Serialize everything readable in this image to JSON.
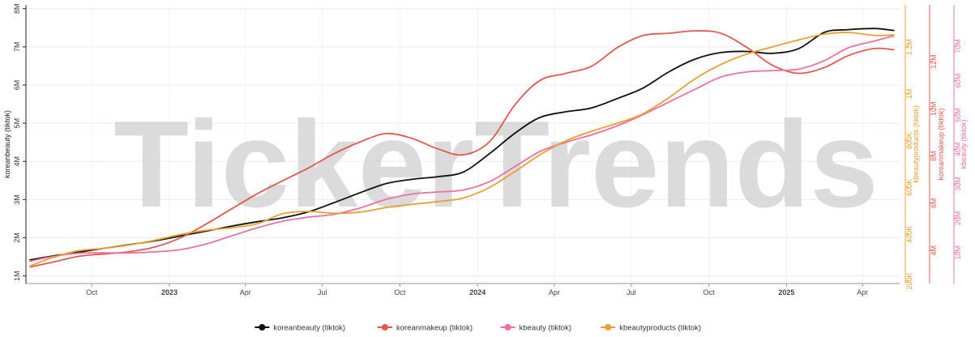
{
  "watermark": "TickerTrends",
  "chart_data": {
    "type": "line",
    "grid": true,
    "legend_position": "bottom-center",
    "x_ticks": [
      {
        "date": "2022-10-01",
        "label": "Oct",
        "bold": false
      },
      {
        "date": "2023-01-01",
        "label": "2023",
        "bold": true
      },
      {
        "date": "2023-04-01",
        "label": "Apr",
        "bold": false
      },
      {
        "date": "2023-07-01",
        "label": "Jul",
        "bold": false
      },
      {
        "date": "2023-10-01",
        "label": "Oct",
        "bold": false
      },
      {
        "date": "2024-01-01",
        "label": "2024",
        "bold": true
      },
      {
        "date": "2024-04-01",
        "label": "Apr",
        "bold": false
      },
      {
        "date": "2024-07-01",
        "label": "Jul",
        "bold": false
      },
      {
        "date": "2024-10-01",
        "label": "Oct",
        "bold": false
      },
      {
        "date": "2025-01-01",
        "label": "2025",
        "bold": true
      },
      {
        "date": "2025-04-01",
        "label": "Apr",
        "bold": false
      }
    ],
    "x_range": [
      "2022-07-15",
      "2025-05-15"
    ],
    "axes": [
      {
        "id": "y1",
        "label": "koreanbeauty (tiktok)",
        "color": "#222222",
        "range": [
          0.8,
          8.1
        ],
        "ticks": [
          1,
          2,
          3,
          4,
          5,
          6,
          7,
          8
        ],
        "tick_labels": [
          "1M",
          "2M",
          "3M",
          "4M",
          "5M",
          "6M",
          "7M",
          "8M"
        ]
      },
      {
        "id": "y2",
        "label": "kbeautyproducts (tiktok)",
        "color": "#e8a030",
        "range": [
          190,
          1380
        ],
        "ticks": [
          200,
          400,
          600,
          800,
          1000,
          1200
        ],
        "tick_labels": [
          "200K",
          "400K",
          "600K",
          "800K",
          "1M",
          "1.2M"
        ]
      },
      {
        "id": "y3",
        "label": "koreanmakeup (tiktok)",
        "color": "#e05a4e",
        "range": [
          2.6,
          14.4
        ],
        "ticks": [
          4,
          6,
          8,
          10,
          12
        ],
        "tick_labels": [
          "4M",
          "6M",
          "8M",
          "10M",
          "12M"
        ]
      },
      {
        "id": "y4",
        "label": "kbeauty (tiktok)",
        "color": "#ee6fa0",
        "range": [
          1,
          82
        ],
        "ticks": [
          10,
          20,
          30,
          40,
          50,
          60,
          70
        ],
        "tick_labels": [
          "10M",
          "20M",
          "30M",
          "40M",
          "50M",
          "60M",
          "70M"
        ]
      }
    ],
    "series": [
      {
        "name": "koreanbeauty (tiktok)",
        "axis": "y1",
        "color": "#111111",
        "points": [
          [
            "2022-07-20",
            1.42
          ],
          [
            "2022-08-15",
            1.52
          ],
          [
            "2022-09-15",
            1.62
          ],
          [
            "2022-10-15",
            1.72
          ],
          [
            "2022-11-15",
            1.82
          ],
          [
            "2022-12-15",
            1.92
          ],
          [
            "2023-01-15",
            2.05
          ],
          [
            "2023-02-15",
            2.18
          ],
          [
            "2023-03-15",
            2.3
          ],
          [
            "2023-04-15",
            2.42
          ],
          [
            "2023-05-15",
            2.52
          ],
          [
            "2023-06-15",
            2.68
          ],
          [
            "2023-07-15",
            2.92
          ],
          [
            "2023-08-15",
            3.18
          ],
          [
            "2023-09-15",
            3.42
          ],
          [
            "2023-10-15",
            3.53
          ],
          [
            "2023-11-15",
            3.6
          ],
          [
            "2023-12-15",
            3.72
          ],
          [
            "2024-01-15",
            4.2
          ],
          [
            "2024-02-15",
            4.75
          ],
          [
            "2024-03-15",
            5.15
          ],
          [
            "2024-04-15",
            5.3
          ],
          [
            "2024-05-15",
            5.4
          ],
          [
            "2024-06-15",
            5.65
          ],
          [
            "2024-07-15",
            5.92
          ],
          [
            "2024-08-15",
            6.35
          ],
          [
            "2024-09-15",
            6.68
          ],
          [
            "2024-10-15",
            6.85
          ],
          [
            "2024-11-15",
            6.88
          ],
          [
            "2024-12-15",
            6.83
          ],
          [
            "2025-01-15",
            6.95
          ],
          [
            "2025-02-15",
            7.38
          ],
          [
            "2025-03-15",
            7.45
          ],
          [
            "2025-04-15",
            7.48
          ],
          [
            "2025-05-08",
            7.43
          ]
        ]
      },
      {
        "name": "koreanmakeup (tiktok)",
        "axis": "y3",
        "color": "#e05a4e",
        "points": [
          [
            "2022-07-20",
            3.3
          ],
          [
            "2022-08-15",
            3.5
          ],
          [
            "2022-09-15",
            3.75
          ],
          [
            "2022-10-15",
            3.85
          ],
          [
            "2022-11-15",
            3.95
          ],
          [
            "2022-12-15",
            4.15
          ],
          [
            "2023-01-15",
            4.55
          ],
          [
            "2023-02-15",
            5.15
          ],
          [
            "2023-03-15",
            5.75
          ],
          [
            "2023-04-15",
            6.4
          ],
          [
            "2023-05-15",
            6.95
          ],
          [
            "2023-06-15",
            7.5
          ],
          [
            "2023-07-15",
            8.1
          ],
          [
            "2023-08-15",
            8.6
          ],
          [
            "2023-09-15",
            8.95
          ],
          [
            "2023-10-15",
            8.75
          ],
          [
            "2023-11-15",
            8.3
          ],
          [
            "2023-12-15",
            8.05
          ],
          [
            "2024-01-15",
            8.6
          ],
          [
            "2024-02-15",
            10.2
          ],
          [
            "2024-03-15",
            11.2
          ],
          [
            "2024-04-15",
            11.5
          ],
          [
            "2024-05-15",
            11.8
          ],
          [
            "2024-06-15",
            12.6
          ],
          [
            "2024-07-15",
            13.1
          ],
          [
            "2024-08-15",
            13.2
          ],
          [
            "2024-09-15",
            13.3
          ],
          [
            "2024-10-15",
            13.2
          ],
          [
            "2024-11-15",
            12.6
          ],
          [
            "2024-12-15",
            11.85
          ],
          [
            "2025-01-15",
            11.5
          ],
          [
            "2025-02-15",
            11.75
          ],
          [
            "2025-03-15",
            12.25
          ],
          [
            "2025-04-15",
            12.55
          ],
          [
            "2025-05-08",
            12.5
          ]
        ]
      },
      {
        "name": "kbeauty (tiktok)",
        "axis": "y4",
        "color": "#ee6fa0",
        "points": [
          [
            "2022-07-20",
            7.5
          ],
          [
            "2022-08-15",
            8.8
          ],
          [
            "2022-09-15",
            9.8
          ],
          [
            "2022-10-15",
            9.9
          ],
          [
            "2022-11-15",
            9.9
          ],
          [
            "2022-12-15",
            10.2
          ],
          [
            "2023-01-15",
            10.9
          ],
          [
            "2023-02-15",
            12.6
          ],
          [
            "2023-03-15",
            14.8
          ],
          [
            "2023-04-15",
            17.2
          ],
          [
            "2023-05-15",
            19.1
          ],
          [
            "2023-06-15",
            20.3
          ],
          [
            "2023-07-15",
            21.1
          ],
          [
            "2023-08-15",
            23.0
          ],
          [
            "2023-09-15",
            25.5
          ],
          [
            "2023-10-15",
            27.0
          ],
          [
            "2023-11-15",
            27.6
          ],
          [
            "2023-12-15",
            28.2
          ],
          [
            "2024-01-15",
            30.6
          ],
          [
            "2024-02-15",
            35.1
          ],
          [
            "2024-03-15",
            39.4
          ],
          [
            "2024-04-15",
            42.1
          ],
          [
            "2024-05-15",
            44.2
          ],
          [
            "2024-06-15",
            46.9
          ],
          [
            "2024-07-15",
            50.1
          ],
          [
            "2024-08-15",
            53.8
          ],
          [
            "2024-09-15",
            57.5
          ],
          [
            "2024-10-15",
            61.0
          ],
          [
            "2024-11-15",
            62.5
          ],
          [
            "2024-12-15",
            62.9
          ],
          [
            "2025-01-15",
            63.3
          ],
          [
            "2025-02-15",
            65.8
          ],
          [
            "2025-03-15",
            69.5
          ],
          [
            "2025-04-15",
            71.5
          ],
          [
            "2025-05-08",
            73.0
          ]
        ]
      },
      {
        "name": "kbeautyproducts (tiktok)",
        "axis": "y2",
        "color": "#e8a030",
        "points": [
          [
            "2022-07-20",
            265
          ],
          [
            "2022-08-15",
            300
          ],
          [
            "2022-09-15",
            330
          ],
          [
            "2022-10-15",
            340
          ],
          [
            "2022-11-15",
            355
          ],
          [
            "2022-12-15",
            375
          ],
          [
            "2023-01-15",
            400
          ],
          [
            "2023-02-15",
            418
          ],
          [
            "2023-03-15",
            428
          ],
          [
            "2023-04-15",
            445
          ],
          [
            "2023-05-15",
            488
          ],
          [
            "2023-06-15",
            498
          ],
          [
            "2023-07-15",
            490
          ],
          [
            "2023-08-15",
            495
          ],
          [
            "2023-09-15",
            515
          ],
          [
            "2023-10-15",
            528
          ],
          [
            "2023-11-15",
            540
          ],
          [
            "2023-12-15",
            555
          ],
          [
            "2024-01-15",
            600
          ],
          [
            "2024-02-15",
            670
          ],
          [
            "2024-03-15",
            740
          ],
          [
            "2024-04-15",
            800
          ],
          [
            "2024-05-15",
            840
          ],
          [
            "2024-06-15",
            875
          ],
          [
            "2024-07-15",
            915
          ],
          [
            "2024-08-15",
            985
          ],
          [
            "2024-09-15",
            1065
          ],
          [
            "2024-10-15",
            1125
          ],
          [
            "2024-11-15",
            1170
          ],
          [
            "2024-12-15",
            1200
          ],
          [
            "2025-01-15",
            1230
          ],
          [
            "2025-02-15",
            1255
          ],
          [
            "2025-03-15",
            1262
          ],
          [
            "2025-04-15",
            1250
          ],
          [
            "2025-05-08",
            1252
          ]
        ]
      }
    ]
  }
}
